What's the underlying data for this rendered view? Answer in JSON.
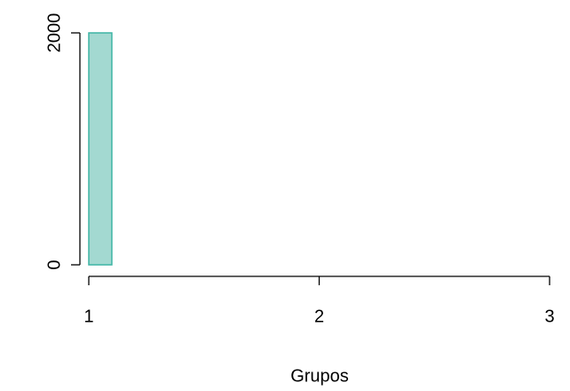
{
  "chart_data": {
    "type": "histogram",
    "x_label": "Grupos",
    "bins": [
      1.0,
      1.1,
      1.2,
      1.3,
      1.4,
      1.5,
      1.6,
      1.7,
      1.8,
      1.9,
      2.0,
      2.1,
      2.2,
      2.3,
      2.4,
      2.5,
      2.6,
      2.7,
      2.8,
      2.9,
      3.0
    ],
    "values": [
      2000,
      0,
      0,
      0,
      0,
      0,
      0,
      0,
      0,
      0,
      0,
      0,
      0,
      0,
      0,
      0,
      0,
      0,
      0,
      0
    ],
    "color": "#a3d9d1",
    "edge_color": "#3cb4a4",
    "xlim": [
      1,
      3
    ],
    "xticks": [
      1,
      2,
      3
    ],
    "ylim": [
      0,
      2000
    ],
    "yticks": [
      0,
      2000
    ]
  }
}
